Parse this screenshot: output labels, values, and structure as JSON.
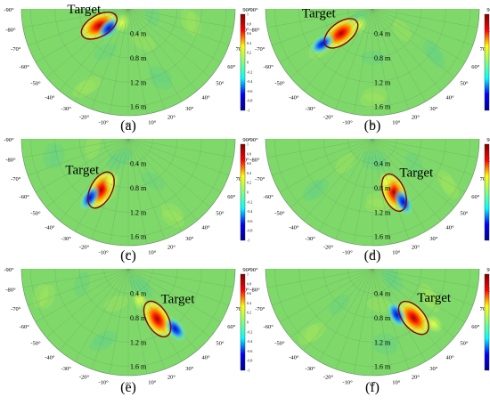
{
  "figure": {
    "panels": [
      {
        "label": "(a)",
        "target_text": "Target",
        "blobs": [
          {
            "kind": "target",
            "r": 0.55,
            "ang": -60,
            "amp": 0.9
          },
          {
            "kind": "neg",
            "r": 0.45,
            "ang": -45,
            "amp": -0.6
          },
          {
            "kind": "pos",
            "r": 0.25,
            "ang": -25,
            "amp": 0.3
          }
        ]
      },
      {
        "label": "(b)",
        "target_text": "Target",
        "blobs": [
          {
            "kind": "target",
            "r": 0.65,
            "ang": -52,
            "amp": 1.0
          },
          {
            "kind": "neg",
            "r": 1.0,
            "ang": -55,
            "amp": -0.8
          },
          {
            "kind": "pos",
            "r": 0.35,
            "ang": -40,
            "amp": 0.4
          }
        ]
      },
      {
        "label": "(c)",
        "target_text": "Target",
        "blobs": [
          {
            "kind": "target",
            "r": 0.95,
            "ang": -28,
            "amp": 0.9
          },
          {
            "kind": "neg",
            "r": 1.15,
            "ang": -33,
            "amp": -0.6
          },
          {
            "kind": "pos",
            "r": 0.75,
            "ang": -22,
            "amp": 0.3
          }
        ]
      },
      {
        "label": "(d)",
        "target_text": "Target",
        "blobs": [
          {
            "kind": "target",
            "r": 0.95,
            "ang": 22,
            "amp": 0.9
          },
          {
            "kind": "neg",
            "r": 1.15,
            "ang": 26,
            "amp": -0.6
          },
          {
            "kind": "pos",
            "r": 0.75,
            "ang": 18,
            "amp": 0.3
          }
        ]
      },
      {
        "label": "(e)",
        "target_text": "Target",
        "blobs": [
          {
            "kind": "target",
            "r": 0.95,
            "ang": 30,
            "amp": 1.0
          },
          {
            "kind": "neg",
            "r": 1.25,
            "ang": 38,
            "amp": -0.8
          },
          {
            "kind": "pos",
            "r": 0.55,
            "ang": 20,
            "amp": 0.4
          }
        ]
      },
      {
        "label": "(f)",
        "target_text": "Target",
        "blobs": [
          {
            "kind": "target",
            "r": 1.05,
            "ang": 40,
            "amp": 0.9
          },
          {
            "kind": "neg",
            "r": 0.85,
            "ang": 28,
            "amp": -0.6
          },
          {
            "kind": "pos",
            "r": 1.35,
            "ang": 48,
            "amp": 0.2
          }
        ]
      }
    ],
    "range_labels": [
      "0.4 m",
      "0.8 m",
      "1.2 m",
      "1.6 m"
    ],
    "range_values": [
      0.4,
      0.8,
      1.2,
      1.6
    ],
    "angle_labels_left": [
      "-90°",
      "-80°",
      "-70°",
      "-60°",
      "-50°",
      "-40°",
      "-30°",
      "-20°",
      "-10°"
    ],
    "angle_labels_right": [
      "0°",
      "10°",
      "20°",
      "30°",
      "40°",
      "50°",
      "60°",
      "70°",
      "80°",
      "90°"
    ],
    "colorbar_ticks": [
      "1",
      "0.8",
      "0.6",
      "0.4",
      "0.2",
      "0",
      "-0.2",
      "-0.4",
      "-0.6",
      "-0.8",
      "-1"
    ],
    "colors": {
      "background_field": "#7fd86a",
      "target_ellipse": "#8b0000",
      "colormap": [
        "#00008f",
        "#0000ff",
        "#00ffff",
        "#7fff7f",
        "#ffff00",
        "#ff0000",
        "#800000"
      ]
    }
  }
}
